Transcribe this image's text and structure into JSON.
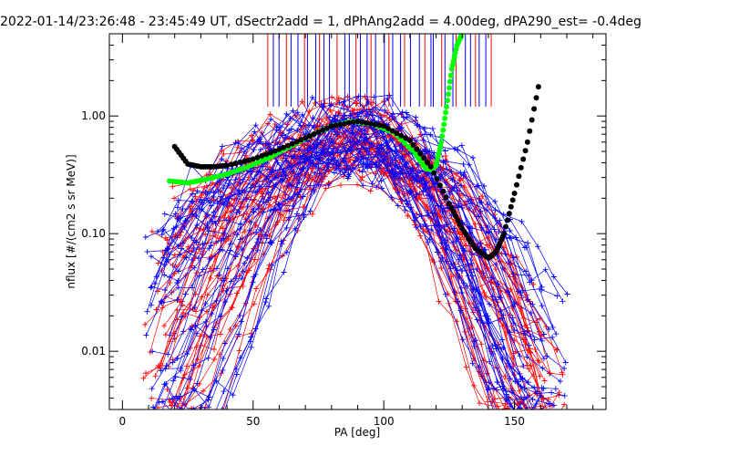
{
  "chart_data": {
    "type": "scatter",
    "title": "2022-01-14/23:26:48 - 23:45:49 UT, dSectr2add = 1, dPhAng2add = 4.00deg, dPA290_est=  -0.4deg",
    "xlabel": "PA [deg]",
    "ylabel": "nflux [#/(cm2 s sr MeV)]",
    "xlim": [
      -5,
      185
    ],
    "ylim": [
      0.0032,
      5.0
    ],
    "yscale": "log",
    "xticks": [
      0,
      50,
      100,
      150
    ],
    "yticks": [
      {
        "value": 1.0,
        "label": "1.00"
      },
      {
        "value": 0.1,
        "label": "0.10"
      },
      {
        "value": 0.01,
        "label": "0.01"
      }
    ],
    "grid": false,
    "colors": {
      "red": "#ff0000",
      "blue": "#0000ff",
      "green": "#00ff00",
      "black": "#000000"
    },
    "series": [
      {
        "color": "green",
        "style": "thick-dots",
        "x": [
          18,
          25,
          32,
          40,
          48,
          56,
          64,
          72,
          80,
          88,
          96,
          104,
          112,
          116,
          118,
          120,
          122,
          124,
          126,
          128,
          130
        ],
        "y": [
          0.28,
          0.27,
          0.29,
          0.32,
          0.37,
          0.44,
          0.55,
          0.68,
          0.82,
          0.9,
          0.85,
          0.72,
          0.48,
          0.36,
          0.35,
          0.38,
          0.6,
          1.2,
          2.5,
          4.0,
          5.0
        ]
      },
      {
        "color": "black",
        "style": "thick-dots",
        "x": [
          20,
          25,
          30,
          35,
          40,
          50,
          60,
          70,
          80,
          90,
          100,
          110,
          118,
          125,
          130,
          135,
          140,
          143,
          146,
          150,
          155,
          160
        ],
        "y": [
          0.55,
          0.39,
          0.37,
          0.37,
          0.38,
          0.43,
          0.52,
          0.65,
          0.82,
          0.9,
          0.82,
          0.62,
          0.37,
          0.18,
          0.11,
          0.075,
          0.062,
          0.07,
          0.1,
          0.22,
          0.6,
          2.2
        ]
      }
    ]
  }
}
